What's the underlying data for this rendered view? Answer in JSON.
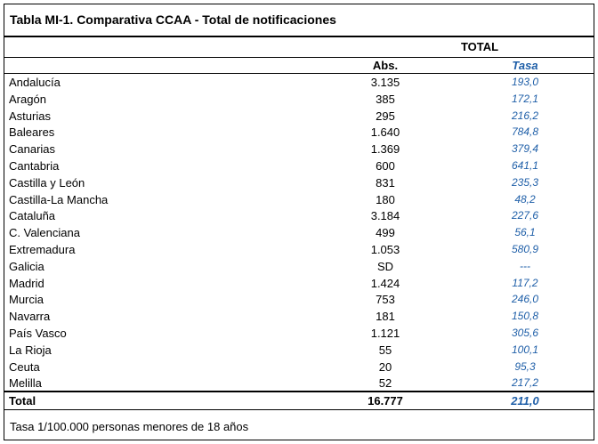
{
  "title": "Tabla MI-1. Comparativa CCAA - Total de notificaciones",
  "group_header": "TOTAL",
  "columns": {
    "abs": "Abs.",
    "tasa": "Tasa"
  },
  "rows": [
    {
      "name": "Andalucía",
      "abs": "3.135",
      "tasa": "193,0"
    },
    {
      "name": "Aragón",
      "abs": "385",
      "tasa": "172,1"
    },
    {
      "name": "Asturias",
      "abs": "295",
      "tasa": "216,2"
    },
    {
      "name": "Baleares",
      "abs": "1.640",
      "tasa": "784,8"
    },
    {
      "name": "Canarias",
      "abs": "1.369",
      "tasa": "379,4"
    },
    {
      "name": "Cantabria",
      "abs": "600",
      "tasa": "641,1"
    },
    {
      "name": "Castilla y León",
      "abs": "831",
      "tasa": "235,3"
    },
    {
      "name": "Castilla-La Mancha",
      "abs": "180",
      "tasa": "48,2"
    },
    {
      "name": "Cataluña",
      "abs": "3.184",
      "tasa": "227,6"
    },
    {
      "name": "C. Valenciana",
      "abs": "499",
      "tasa": "56,1"
    },
    {
      "name": "Extremadura",
      "abs": "1.053",
      "tasa": "580,9"
    },
    {
      "name": "Galicia",
      "abs": "SD",
      "tasa": "---"
    },
    {
      "name": "Madrid",
      "abs": "1.424",
      "tasa": "117,2"
    },
    {
      "name": "Murcia",
      "abs": "753",
      "tasa": "246,0"
    },
    {
      "name": "Navarra",
      "abs": "181",
      "tasa": "150,8"
    },
    {
      "name": "País Vasco",
      "abs": "1.121",
      "tasa": "305,6"
    },
    {
      "name": "La Rioja",
      "abs": "55",
      "tasa": "100,1"
    },
    {
      "name": "Ceuta",
      "abs": "20",
      "tasa": "95,3"
    },
    {
      "name": "Melilla",
      "abs": "52",
      "tasa": "217,2"
    }
  ],
  "total": {
    "name": "Total",
    "abs": "16.777",
    "tasa": "211,0"
  },
  "footnote": "Tasa 1/100.000 personas menores de 18 años",
  "colors": {
    "tasa": "#1f5fa8"
  }
}
